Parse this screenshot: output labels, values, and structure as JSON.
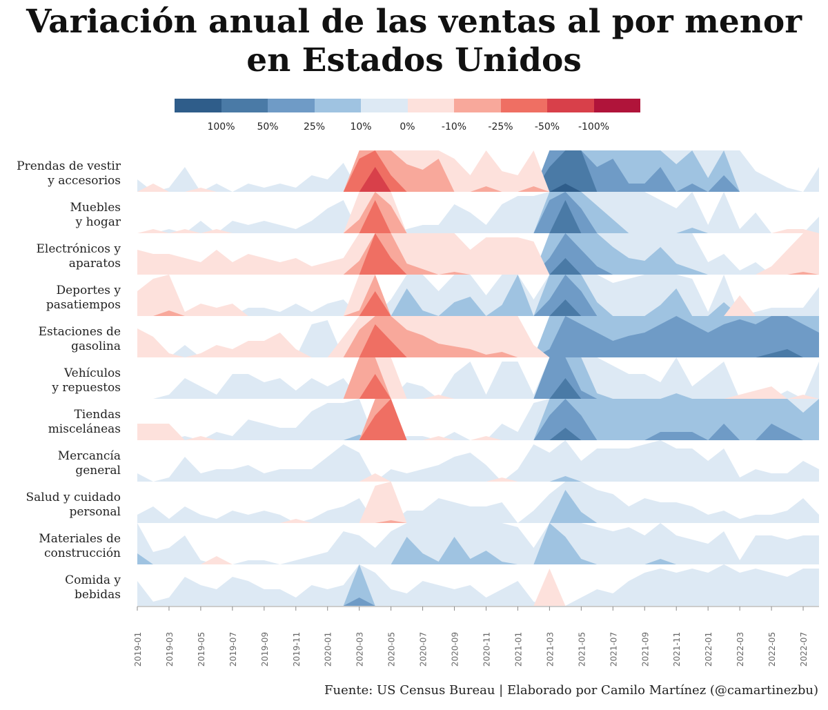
{
  "title_line1": "Variación anual de las ventas al por menor",
  "title_line2": "en Estados Unidos",
  "source": "Fuente: US Census Bureau | Elaborado por Camilo Martínez (@camartinezbu)",
  "legend": {
    "colors": [
      "#2f5d8a",
      "#4a7aa6",
      "#6f9bc6",
      "#9fc3e1",
      "#dde9f4",
      "#fde1dc",
      "#f8a89b",
      "#ef6f63",
      "#d8404a",
      "#b0143a"
    ],
    "labels": [
      "100%",
      "50%",
      "25%",
      "10%",
      "0%",
      "-10%",
      "-25%",
      "-50%",
      "-100%"
    ]
  },
  "chart_data": {
    "type": "area",
    "subtype": "horizon",
    "title": "Variación anual de las ventas al por menor en Estados Unidos",
    "bands_pct": [
      10,
      25,
      50,
      100
    ],
    "positive_colors": [
      "#dde9f4",
      "#9fc3e1",
      "#6f9bc6",
      "#4a7aa6",
      "#2f5d8a"
    ],
    "negative_colors": [
      "#fde1dc",
      "#f8a89b",
      "#ef6f63",
      "#d8404a",
      "#b0143a"
    ],
    "x": [
      "2019-01",
      "2019-02",
      "2019-03",
      "2019-04",
      "2019-05",
      "2019-06",
      "2019-07",
      "2019-08",
      "2019-09",
      "2019-10",
      "2019-11",
      "2019-12",
      "2020-01",
      "2020-02",
      "2020-03",
      "2020-04",
      "2020-05",
      "2020-06",
      "2020-07",
      "2020-08",
      "2020-09",
      "2020-10",
      "2020-11",
      "2020-12",
      "2021-01",
      "2021-02",
      "2021-03",
      "2021-04",
      "2021-05",
      "2021-06",
      "2021-07",
      "2021-08",
      "2021-09",
      "2021-10",
      "2021-11",
      "2021-12",
      "2022-01",
      "2022-02",
      "2022-03",
      "2022-04",
      "2022-05",
      "2022-06",
      "2022-07",
      "2022-08"
    ],
    "x_ticks": [
      "2019-01",
      "2019-03",
      "2019-05",
      "2019-07",
      "2019-09",
      "2019-11",
      "2020-01",
      "2020-03",
      "2020-05",
      "2020-07",
      "2020-09",
      "2020-11",
      "2021-01",
      "2021-03",
      "2021-05",
      "2021-07",
      "2021-09",
      "2021-11",
      "2022-01",
      "2022-03",
      "2022-05",
      "2022-07"
    ],
    "series": [
      {
        "name": "Prendas de vestir y accesorios",
        "label": [
          "Prendas de vestir",
          "y accesorios"
        ],
        "values": [
          3,
          -2,
          1,
          6,
          -1,
          2,
          0,
          2,
          1,
          2,
          1,
          4,
          3,
          7,
          -45,
          -80,
          -35,
          -20,
          -18,
          -22,
          -8,
          -4,
          -12,
          -5,
          -4,
          -12,
          80,
          120,
          100,
          40,
          45,
          30,
          30,
          40,
          20,
          30,
          15,
          35,
          10,
          5,
          3,
          1,
          0,
          6
        ]
      },
      {
        "name": "Muebles y hogar",
        "label": [
          "Muebles",
          "y hogar"
        ],
        "values": [
          0,
          -1,
          1,
          -1,
          3,
          -1,
          3,
          2,
          3,
          2,
          1,
          3,
          6,
          8,
          -15,
          -45,
          -20,
          1,
          2,
          2,
          7,
          5,
          2,
          7,
          9,
          9,
          45,
          90,
          40,
          20,
          15,
          10,
          10,
          8,
          6,
          12,
          2,
          10,
          1,
          5,
          0,
          -1,
          -1,
          4
        ]
      },
      {
        "name": "Electrónicos y aparatos",
        "label": [
          "Electrónicos y",
          "aparatos"
        ],
        "values": [
          -6,
          -5,
          -5,
          -4,
          -3,
          -6,
          -3,
          -5,
          -4,
          -3,
          -4,
          -2,
          -3,
          -4,
          -15,
          -50,
          -35,
          -14,
          -12,
          -10,
          -11,
          -6,
          -9,
          -9,
          -9,
          -8,
          35,
          70,
          40,
          30,
          20,
          16,
          15,
          20,
          14,
          12,
          3,
          5,
          1,
          3,
          -2,
          -6,
          -11,
          -10
        ]
      },
      {
        "name": "Deportes y pasatiempos",
        "label": [
          "Deportes y",
          "pasatiempos"
        ],
        "values": [
          -6,
          -9,
          -12,
          -1,
          -3,
          -2,
          -3,
          2,
          2,
          1,
          3,
          1,
          3,
          4,
          -12,
          -40,
          4,
          20,
          12,
          6,
          15,
          17,
          5,
          14,
          25,
          4,
          35,
          70,
          40,
          15,
          8,
          9,
          10,
          14,
          20,
          9,
          1,
          15,
          -5,
          1,
          2,
          2,
          2,
          7
        ]
      },
      {
        "name": "Estaciones de gasolina",
        "label": [
          "Estaciones de",
          "gasolina"
        ],
        "values": [
          -7,
          -5,
          -1,
          3,
          -1,
          -3,
          -2,
          -4,
          -4,
          -6,
          -2,
          8,
          9,
          -5,
          -20,
          -45,
          -35,
          -20,
          -18,
          -15,
          -14,
          -13,
          -11,
          -12,
          -10,
          -3,
          30,
          50,
          45,
          40,
          35,
          38,
          40,
          45,
          50,
          45,
          40,
          45,
          48,
          45,
          55,
          60,
          45,
          40
        ]
      },
      {
        "name": "Vehículos y repuestos",
        "label": [
          "Vehículos",
          "y repuestos"
        ],
        "values": [
          0,
          0,
          1,
          5,
          3,
          1,
          6,
          6,
          4,
          5,
          2,
          5,
          3,
          5,
          -25,
          -40,
          -10,
          4,
          3,
          -1,
          6,
          9,
          1,
          9,
          9,
          1,
          50,
          75,
          30,
          12,
          8,
          6,
          6,
          4,
          12,
          3,
          6,
          9,
          -1,
          -2,
          -3,
          2,
          -1,
          9
        ]
      },
      {
        "name": "Tiendas misceláneas",
        "label": [
          "Tiendas",
          "misceláneas"
        ],
        "values": [
          -4,
          -4,
          -4,
          1,
          -1,
          2,
          1,
          5,
          4,
          3,
          3,
          7,
          9,
          9,
          12,
          -40,
          -50,
          1,
          1,
          -1,
          2,
          0,
          -1,
          4,
          2,
          9,
          40,
          65,
          40,
          25,
          25,
          25,
          25,
          30,
          30,
          30,
          25,
          35,
          25,
          25,
          35,
          30,
          20,
          25
        ]
      },
      {
        "name": "Mercancía general",
        "label": [
          "Mercancía",
          "general"
        ],
        "values": [
          2,
          0,
          1,
          6,
          2,
          3,
          3,
          4,
          2,
          3,
          3,
          3,
          6,
          9,
          7,
          -2,
          3,
          2,
          3,
          4,
          6,
          7,
          4,
          -1,
          3,
          9,
          7,
          12,
          5,
          8,
          8,
          8,
          9,
          10,
          8,
          8,
          5,
          8,
          1,
          3,
          2,
          2,
          5,
          3
        ]
      },
      {
        "name": "Salud y cuidado personal",
        "label": [
          "Salud y cuidado",
          "personal"
        ],
        "values": [
          2,
          4,
          1,
          4,
          2,
          1,
          3,
          2,
          3,
          2,
          -1,
          1,
          3,
          4,
          6,
          -9,
          -11,
          3,
          3,
          6,
          5,
          4,
          4,
          5,
          0,
          3,
          7,
          22,
          14,
          8,
          7,
          4,
          6,
          5,
          5,
          4,
          2,
          3,
          1,
          2,
          2,
          3,
          6,
          2
        ]
      },
      {
        "name": "Materiales de construcción",
        "label": [
          "Materiales de",
          "construcción"
        ],
        "values": [
          14,
          3,
          4,
          7,
          1,
          -2,
          0,
          1,
          1,
          0,
          1,
          2,
          3,
          8,
          7,
          4,
          8,
          20,
          14,
          11,
          20,
          12,
          15,
          11,
          9,
          4,
          25,
          20,
          12,
          9,
          8,
          9,
          7,
          12,
          7,
          6,
          5,
          8,
          1,
          7,
          7,
          6,
          7,
          7
        ]
      },
      {
        "name": "Comida y bebidas",
        "label": [
          "Comida y",
          "bebidas"
        ],
        "values": [
          6,
          1,
          2,
          7,
          5,
          4,
          7,
          6,
          4,
          4,
          2,
          5,
          4,
          5,
          30,
          8,
          4,
          3,
          6,
          5,
          4,
          5,
          2,
          4,
          6,
          1,
          -9,
          0,
          2,
          4,
          3,
          6,
          8,
          9,
          8,
          9,
          8,
          10,
          8,
          9,
          8,
          7,
          9,
          9
        ]
      }
    ]
  }
}
